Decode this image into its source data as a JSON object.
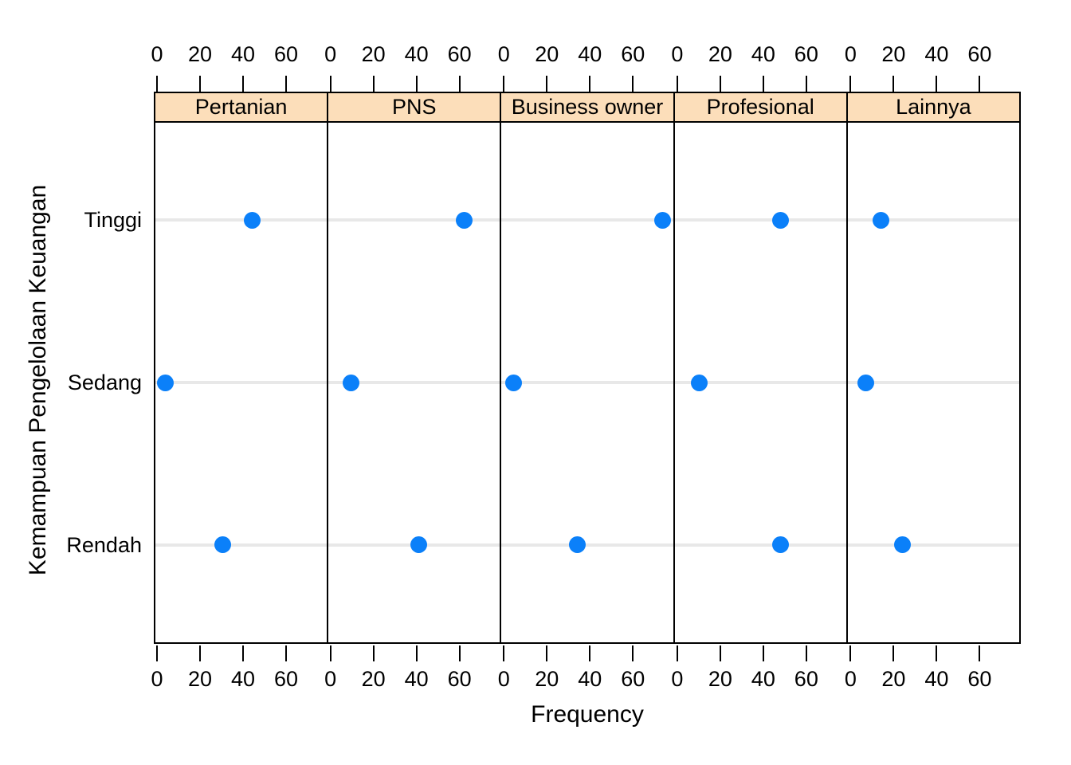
{
  "figure": {
    "background": "#ffffff"
  },
  "chart_data": {
    "type": "scatter",
    "variant": "lattice-dotplot",
    "title": "",
    "panels": [
      "Pertanian",
      "PNS",
      "Business owner",
      "Profesional",
      "Lainnya"
    ],
    "categories": [
      "Tinggi",
      "Sedang",
      "Rendah"
    ],
    "series": [
      {
        "name": "Pertanian",
        "values": [
          44,
          3,
          30
        ]
      },
      {
        "name": "PNS",
        "values": [
          62,
          9,
          41
        ]
      },
      {
        "name": "Business owner",
        "values": [
          74,
          4,
          34
        ]
      },
      {
        "name": "Profesional",
        "values": [
          48,
          10,
          48
        ]
      },
      {
        "name": "Lainnya",
        "values": [
          14,
          7,
          24
        ]
      }
    ],
    "xlabel": "Frequency",
    "ylabel": "Kemampuan Pengelolaan Keuangan",
    "x_ticks": [
      0,
      20,
      40,
      60
    ],
    "xlim": [
      -1.5,
      79.1
    ],
    "grid": "one horizontal reference line per category row",
    "legend": "none",
    "colors": {
      "point": "#0b80f9",
      "strip_background": "#fcdeba",
      "reference_line": "#e8e8e8",
      "border": "#000000",
      "text": "#000000"
    }
  }
}
